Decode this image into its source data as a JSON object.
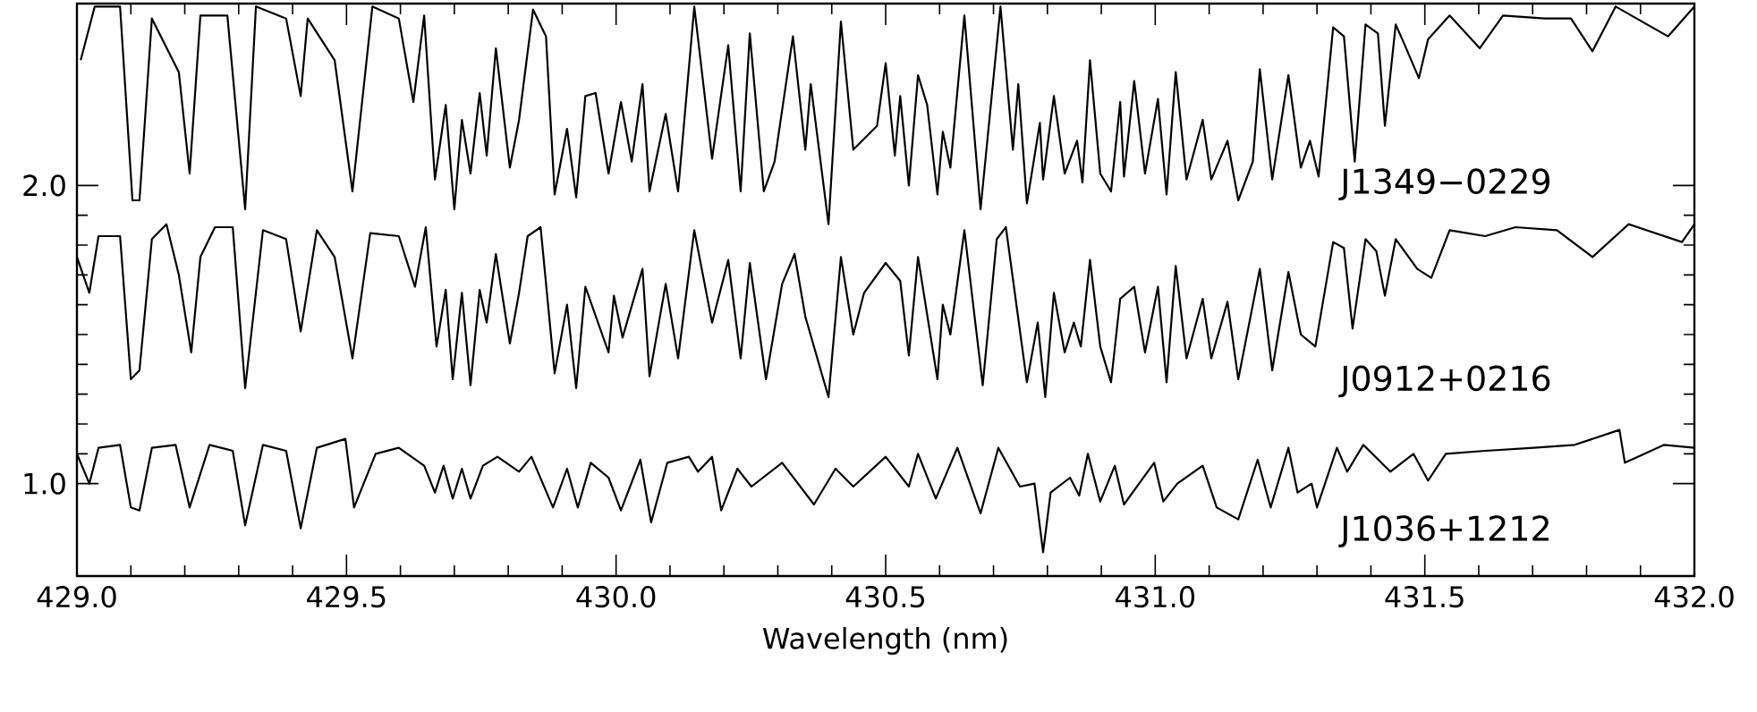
{
  "chart_data": {
    "type": "line",
    "xlabel": "Wavelength (nm)",
    "xlim": [
      429.0,
      432.0
    ],
    "ylim": [
      0.69,
      2.61
    ],
    "xticks": [
      {
        "value": 429.0,
        "label": "429.0"
      },
      {
        "value": 429.5,
        "label": "429.5"
      },
      {
        "value": 430.0,
        "label": "430.0"
      },
      {
        "value": 430.5,
        "label": "430.5"
      },
      {
        "value": 431.0,
        "label": "431.0"
      },
      {
        "value": 431.5,
        "label": "431.5"
      },
      {
        "value": 432.0,
        "label": "432.0"
      }
    ],
    "yticks": [
      {
        "value": 1.0,
        "label": "1.0"
      },
      {
        "value": 2.0,
        "label": "2.0"
      }
    ],
    "grid": false,
    "legend": false,
    "marker": "none",
    "line_style": "solid",
    "series": [
      {
        "name": "J1349−0229",
        "color": "#000000",
        "x": [
          429.007,
          429.033,
          429.08,
          429.103,
          429.116,
          429.139,
          429.189,
          429.209,
          429.229,
          429.279,
          429.312,
          429.332,
          429.388,
          429.415,
          429.428,
          429.478,
          429.511,
          429.548,
          429.597,
          429.624,
          429.644,
          429.664,
          429.684,
          429.7,
          429.714,
          429.73,
          429.747,
          429.76,
          429.777,
          429.803,
          429.82,
          429.846,
          429.87,
          429.886,
          429.909,
          429.926,
          429.943,
          429.962,
          429.986,
          430.009,
          430.029,
          430.049,
          430.062,
          430.092,
          430.115,
          430.145,
          430.178,
          430.208,
          430.231,
          430.248,
          430.274,
          430.294,
          430.328,
          430.351,
          430.361,
          430.394,
          430.417,
          430.44,
          430.484,
          430.5,
          430.517,
          430.527,
          430.543,
          430.56,
          430.577,
          430.596,
          430.606,
          430.62,
          430.646,
          430.676,
          430.713,
          430.736,
          430.746,
          430.762,
          430.786,
          430.792,
          430.812,
          430.832,
          430.855,
          430.865,
          430.879,
          430.898,
          430.918,
          430.935,
          430.942,
          430.961,
          430.981,
          431.005,
          431.021,
          431.038,
          431.058,
          431.088,
          431.104,
          431.134,
          431.154,
          431.181,
          431.194,
          431.217,
          431.247,
          431.27,
          431.287,
          431.303,
          431.33,
          431.35,
          431.37,
          431.39,
          431.413,
          431.426,
          431.446,
          431.463,
          431.489,
          431.506,
          431.546,
          431.602,
          431.645,
          431.722,
          431.771,
          431.811,
          431.854,
          431.951,
          432.0
        ],
        "values": [
          2.42,
          2.6,
          2.6,
          1.95,
          1.95,
          2.56,
          2.38,
          2.04,
          2.57,
          2.57,
          1.92,
          2.6,
          2.56,
          2.3,
          2.56,
          2.42,
          1.98,
          2.6,
          2.56,
          2.28,
          2.57,
          2.02,
          2.27,
          1.92,
          2.22,
          2.04,
          2.31,
          2.1,
          2.46,
          2.06,
          2.22,
          2.59,
          2.5,
          1.97,
          2.19,
          1.96,
          2.3,
          2.31,
          2.04,
          2.28,
          2.08,
          2.34,
          1.98,
          2.24,
          1.98,
          2.6,
          2.09,
          2.47,
          1.98,
          2.51,
          1.98,
          2.08,
          2.5,
          2.12,
          2.34,
          1.87,
          2.55,
          2.12,
          2.2,
          2.41,
          2.1,
          2.3,
          2.0,
          2.37,
          2.27,
          1.97,
          2.18,
          2.06,
          2.57,
          1.92,
          2.6,
          2.12,
          2.34,
          1.94,
          2.21,
          2.02,
          2.3,
          2.04,
          2.15,
          2.01,
          2.42,
          2.04,
          1.98,
          2.28,
          2.03,
          2.35,
          2.04,
          2.29,
          1.97,
          2.38,
          2.02,
          2.22,
          2.02,
          2.15,
          1.95,
          2.08,
          2.39,
          2.02,
          2.37,
          2.06,
          2.15,
          2.03,
          2.53,
          2.5,
          2.08,
          2.54,
          2.51,
          2.2,
          2.54,
          2.47,
          2.36,
          2.49,
          2.57,
          2.46,
          2.57,
          2.56,
          2.56,
          2.45,
          2.6,
          2.5,
          2.6
        ]
      },
      {
        "name": "J0912+0216",
        "color": "#000000",
        "x": [
          429.0,
          429.023,
          429.04,
          429.08,
          429.1,
          429.116,
          429.139,
          429.166,
          429.189,
          429.212,
          429.229,
          429.256,
          429.289,
          429.312,
          429.345,
          429.388,
          429.415,
          429.445,
          429.478,
          429.511,
          429.544,
          429.597,
          429.627,
          429.647,
          429.667,
          429.684,
          429.697,
          429.714,
          429.73,
          429.747,
          429.76,
          429.777,
          429.803,
          429.82,
          429.836,
          429.86,
          429.886,
          429.909,
          429.926,
          429.943,
          429.986,
          429.996,
          430.012,
          430.049,
          430.062,
          430.092,
          430.115,
          430.145,
          430.178,
          430.208,
          430.231,
          430.248,
          430.278,
          430.308,
          430.331,
          430.351,
          430.394,
          430.417,
          430.44,
          430.46,
          430.5,
          430.527,
          430.543,
          430.56,
          430.596,
          430.606,
          430.62,
          430.646,
          430.68,
          430.706,
          430.723,
          430.762,
          430.782,
          430.796,
          430.812,
          430.832,
          430.849,
          430.862,
          430.879,
          430.898,
          430.918,
          430.935,
          430.961,
          430.981,
          431.005,
          431.021,
          431.038,
          431.058,
          431.088,
          431.104,
          431.134,
          431.154,
          431.194,
          431.217,
          431.247,
          431.27,
          431.297,
          431.33,
          431.35,
          431.366,
          431.39,
          431.41,
          431.426,
          431.446,
          431.486,
          431.512,
          431.546,
          431.612,
          431.668,
          431.745,
          431.811,
          431.878,
          431.977,
          432.0
        ],
        "values": [
          1.76,
          1.64,
          1.83,
          1.83,
          1.35,
          1.38,
          1.82,
          1.87,
          1.7,
          1.44,
          1.76,
          1.86,
          1.86,
          1.32,
          1.85,
          1.82,
          1.51,
          1.85,
          1.76,
          1.42,
          1.84,
          1.83,
          1.66,
          1.86,
          1.46,
          1.65,
          1.35,
          1.64,
          1.33,
          1.65,
          1.54,
          1.77,
          1.47,
          1.64,
          1.83,
          1.86,
          1.37,
          1.6,
          1.32,
          1.66,
          1.44,
          1.63,
          1.49,
          1.72,
          1.36,
          1.67,
          1.42,
          1.85,
          1.54,
          1.75,
          1.42,
          1.74,
          1.35,
          1.67,
          1.77,
          1.56,
          1.29,
          1.76,
          1.5,
          1.64,
          1.74,
          1.68,
          1.43,
          1.76,
          1.35,
          1.6,
          1.5,
          1.85,
          1.33,
          1.82,
          1.86,
          1.34,
          1.54,
          1.29,
          1.64,
          1.44,
          1.54,
          1.46,
          1.75,
          1.46,
          1.34,
          1.62,
          1.66,
          1.44,
          1.66,
          1.34,
          1.73,
          1.42,
          1.62,
          1.42,
          1.61,
          1.35,
          1.72,
          1.38,
          1.71,
          1.5,
          1.46,
          1.81,
          1.79,
          1.52,
          1.82,
          1.78,
          1.63,
          1.82,
          1.72,
          1.69,
          1.85,
          1.83,
          1.86,
          1.85,
          1.76,
          1.87,
          1.81,
          1.87
        ]
      },
      {
        "name": "J1036+1212",
        "color": "#000000",
        "x": [
          429.0,
          429.023,
          429.04,
          429.08,
          429.1,
          429.116,
          429.139,
          429.183,
          429.209,
          429.246,
          429.289,
          429.312,
          429.345,
          429.388,
          429.415,
          429.445,
          429.498,
          429.514,
          429.554,
          429.597,
          429.644,
          429.664,
          429.68,
          429.697,
          429.714,
          429.73,
          429.753,
          429.78,
          429.82,
          429.843,
          429.883,
          429.909,
          429.929,
          429.953,
          429.986,
          430.009,
          430.045,
          430.065,
          430.095,
          430.135,
          430.152,
          430.178,
          430.195,
          430.225,
          430.251,
          430.308,
          430.367,
          430.407,
          430.44,
          430.5,
          430.543,
          430.56,
          430.593,
          430.633,
          430.676,
          430.709,
          430.749,
          430.776,
          430.792,
          430.806,
          430.842,
          430.859,
          430.875,
          430.898,
          430.925,
          430.942,
          430.998,
          431.015,
          431.041,
          431.088,
          431.114,
          431.154,
          431.19,
          431.214,
          431.247,
          431.264,
          431.29,
          431.3,
          431.337,
          431.356,
          431.386,
          431.436,
          431.479,
          431.506,
          431.539,
          431.612,
          431.702,
          431.778,
          431.861,
          431.871,
          431.944,
          432.0
        ],
        "values": [
          1.1,
          1.0,
          1.12,
          1.13,
          0.92,
          0.91,
          1.12,
          1.13,
          0.92,
          1.13,
          1.11,
          0.86,
          1.13,
          1.11,
          0.85,
          1.12,
          1.15,
          0.92,
          1.1,
          1.12,
          1.06,
          0.97,
          1.06,
          0.95,
          1.05,
          0.95,
          1.06,
          1.09,
          1.04,
          1.09,
          0.92,
          1.05,
          0.92,
          1.07,
          1.02,
          0.91,
          1.08,
          0.87,
          1.07,
          1.09,
          1.04,
          1.09,
          0.91,
          1.05,
          0.99,
          1.07,
          0.93,
          1.05,
          0.99,
          1.09,
          0.99,
          1.1,
          0.95,
          1.12,
          0.9,
          1.12,
          0.99,
          1.0,
          0.77,
          0.97,
          1.02,
          0.96,
          1.1,
          0.94,
          1.06,
          0.93,
          1.07,
          0.94,
          1.0,
          1.06,
          0.92,
          0.88,
          1.08,
          0.92,
          1.12,
          0.97,
          1.0,
          0.92,
          1.12,
          1.04,
          1.13,
          1.04,
          1.1,
          1.01,
          1.1,
          1.11,
          1.12,
          1.13,
          1.18,
          1.07,
          1.13,
          1.12
        ]
      }
    ]
  }
}
